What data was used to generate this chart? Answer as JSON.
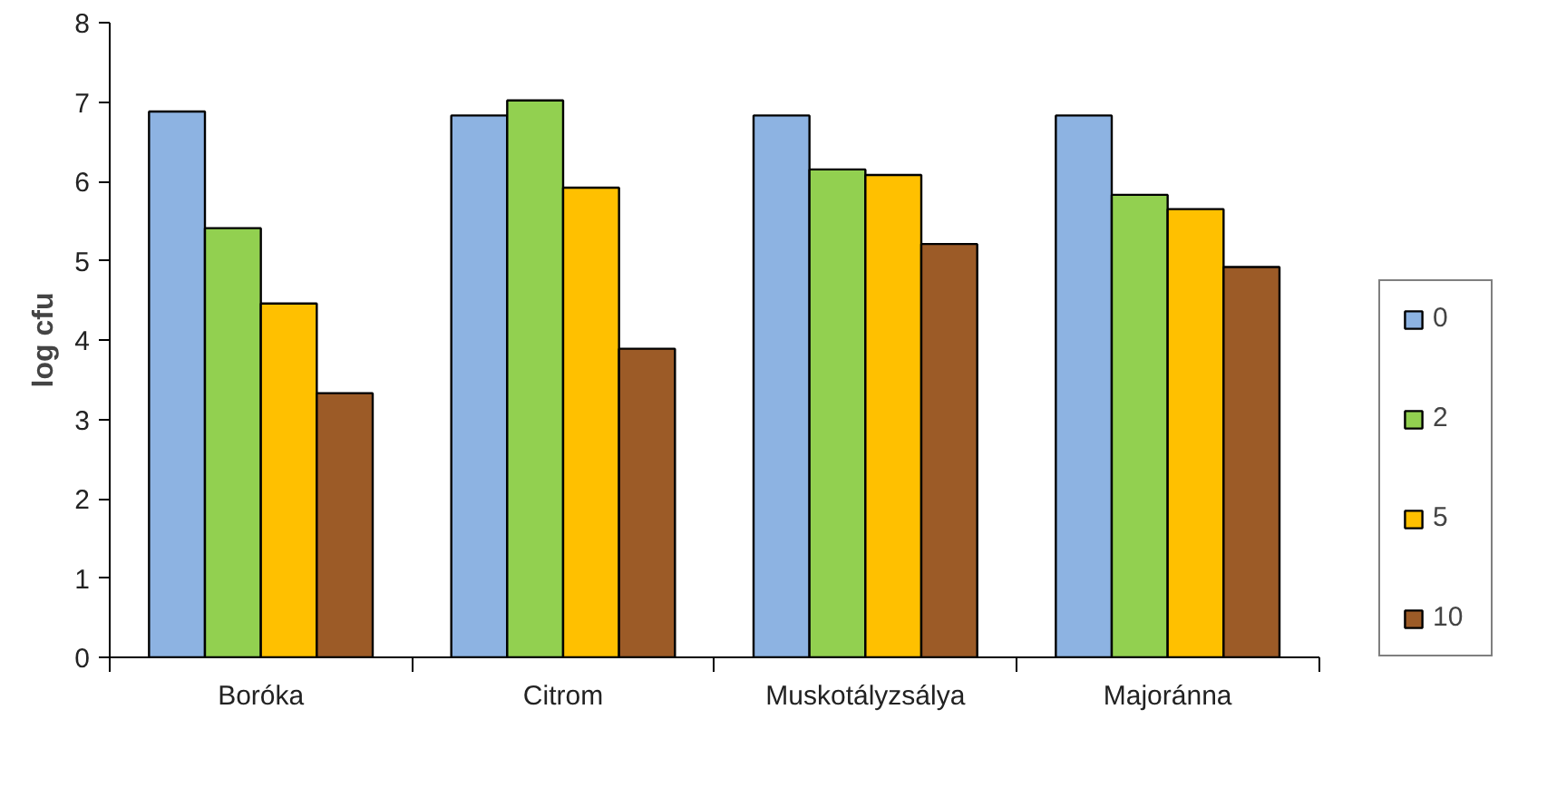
{
  "chart_data": {
    "type": "bar",
    "ylabel": "log cfu",
    "categories": [
      "Boróka",
      "Citrom",
      "Muskotályzsálya",
      "Majoránna"
    ],
    "series": [
      {
        "name": "0",
        "color": "#8db3e2",
        "values": [
          6.88,
          6.83,
          6.83,
          6.83
        ]
      },
      {
        "name": "2",
        "color": "#92d050",
        "values": [
          5.41,
          7.02,
          6.15,
          5.83
        ]
      },
      {
        "name": "5",
        "color": "#ffc000",
        "values": [
          4.46,
          5.92,
          6.08,
          5.65
        ]
      },
      {
        "name": "10",
        "color": "#9c5b27",
        "values": [
          3.33,
          3.89,
          5.21,
          4.92
        ]
      }
    ],
    "ylim": [
      0,
      8
    ],
    "yticks": [
      0,
      1,
      2,
      3,
      4,
      5,
      6,
      7,
      8
    ],
    "grid": false,
    "legend": "right"
  }
}
